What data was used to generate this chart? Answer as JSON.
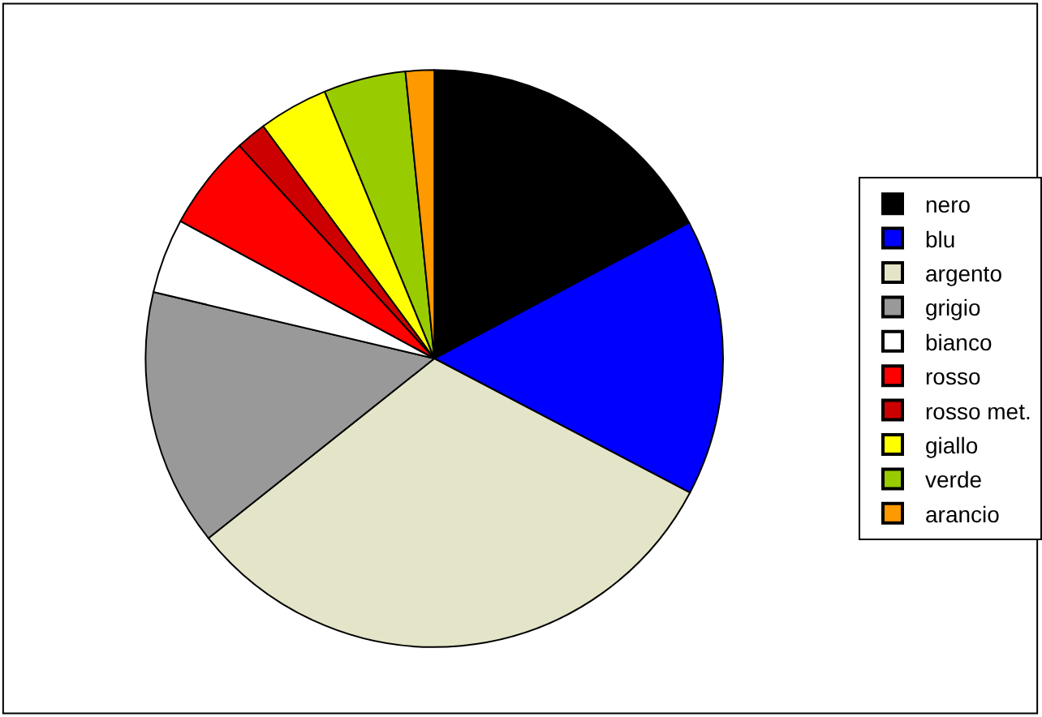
{
  "chart_data": {
    "type": "pie",
    "categories": [
      "nero",
      "blu",
      "argento",
      "grigio",
      "bianco",
      "rosso",
      "rosso met.",
      "giallo",
      "verde",
      "arancio"
    ],
    "values": [
      17.2,
      15.5,
      31.6,
      14.4,
      4.2,
      5.3,
      1.7,
      3.9,
      4.6,
      1.6
    ],
    "colors": [
      "#000000",
      "#0000ff",
      "#e4e4c8",
      "#999999",
      "#ffffff",
      "#ff0000",
      "#cc0000",
      "#ffff00",
      "#99cc00",
      "#ff9900"
    ],
    "legend": "right"
  }
}
